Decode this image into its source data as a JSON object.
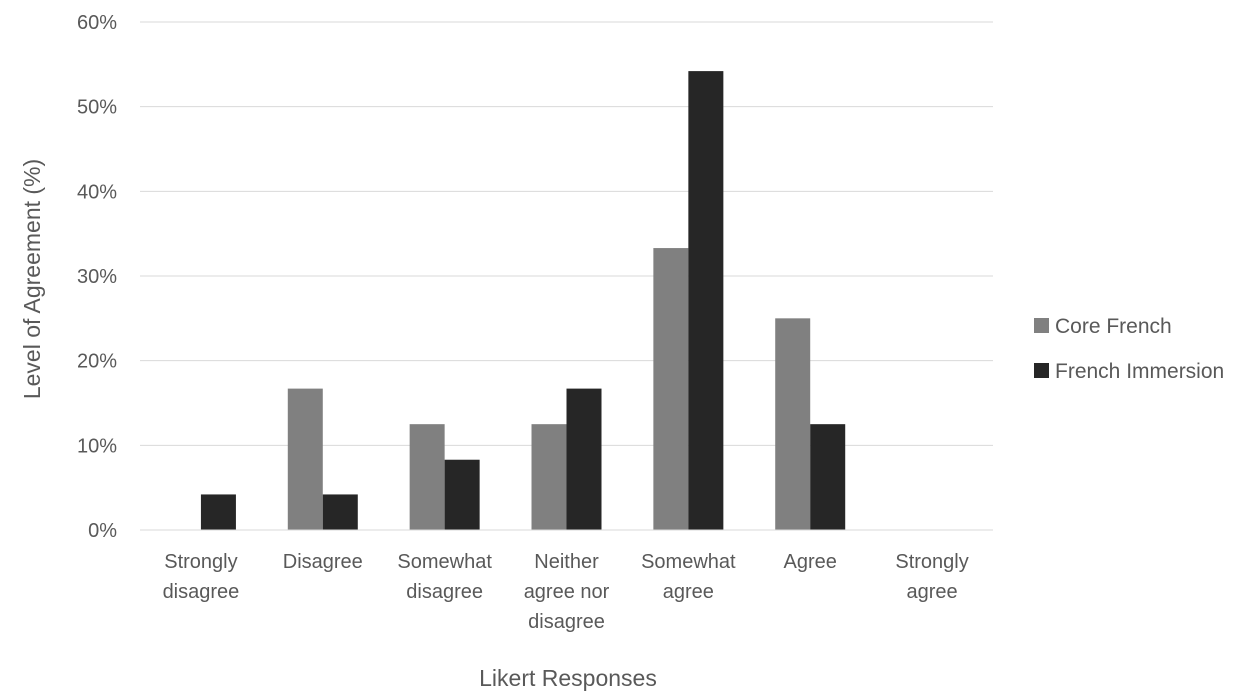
{
  "chart_data": {
    "type": "bar",
    "categories": [
      [
        "Strongly",
        "disagree"
      ],
      [
        "Disagree"
      ],
      [
        "Somewhat",
        "disagree"
      ],
      [
        "Neither",
        "agree nor",
        "disagree"
      ],
      [
        "Somewhat",
        "agree"
      ],
      [
        "Agree"
      ],
      [
        "Strongly",
        "agree"
      ]
    ],
    "series": [
      {
        "name": "Core French",
        "values": [
          0,
          16.7,
          12.5,
          12.5,
          33.3,
          25.0,
          0
        ],
        "color": "#808080"
      },
      {
        "name": "French Immersion",
        "values": [
          4.2,
          4.2,
          8.3,
          16.7,
          54.2,
          12.5,
          0
        ],
        "color": "#262626"
      }
    ],
    "yticks": [
      "0%",
      "10%",
      "20%",
      "30%",
      "40%",
      "50%",
      "60%"
    ],
    "ylim": [
      0,
      60
    ],
    "xlabel": "Likert Responses",
    "ylabel": "Level of Agreement (%)",
    "grid": true,
    "legend": "right"
  }
}
